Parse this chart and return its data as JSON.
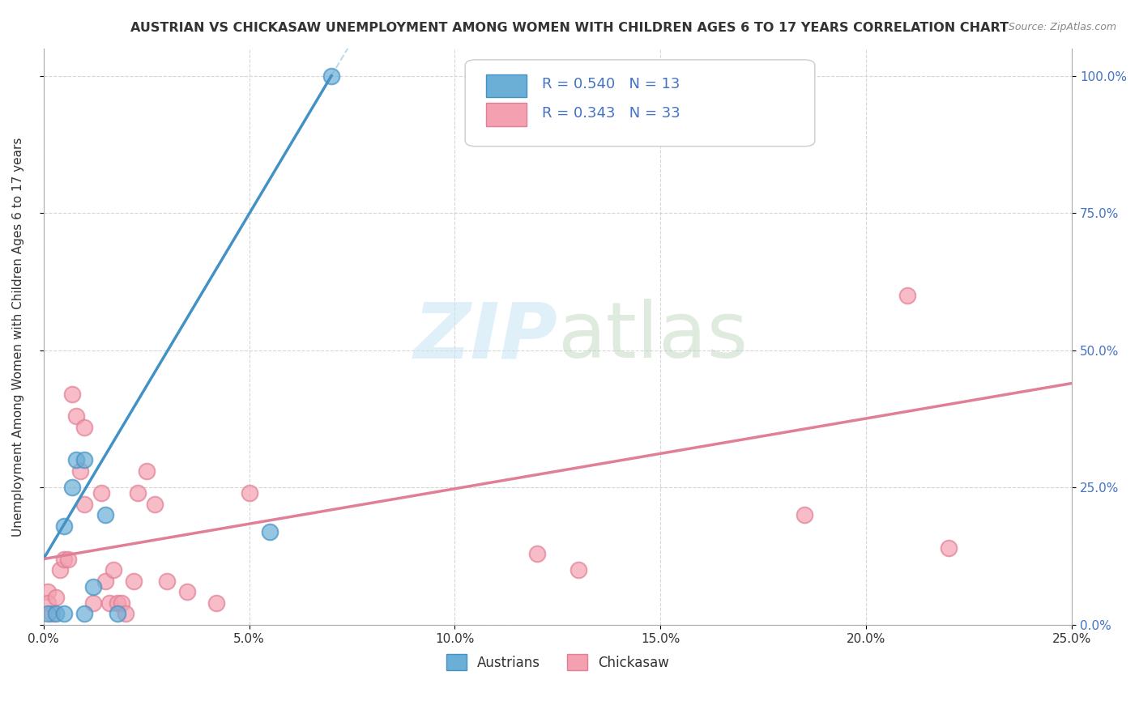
{
  "title": "AUSTRIAN VS CHICKASAW UNEMPLOYMENT AMONG WOMEN WITH CHILDREN AGES 6 TO 17 YEARS CORRELATION CHART",
  "source": "Source: ZipAtlas.com",
  "ylabel_label": "Unemployment Among Women with Children Ages 6 to 17 years",
  "legend_label1": "Austrians",
  "legend_label2": "Chickasaw",
  "r1": 0.54,
  "n1": 13,
  "r2": 0.343,
  "n2": 33,
  "color_blue": "#6baed6",
  "color_pink": "#f4a0b0",
  "color_blue_dark": "#4292c6",
  "color_pink_dark": "#e07f95",
  "austrian_x": [
    0.001,
    0.003,
    0.005,
    0.005,
    0.007,
    0.008,
    0.01,
    0.01,
    0.012,
    0.015,
    0.018,
    0.055,
    0.07
  ],
  "austrian_y": [
    0.02,
    0.02,
    0.02,
    0.18,
    0.25,
    0.3,
    0.3,
    0.02,
    0.07,
    0.2,
    0.02,
    0.17,
    1.0
  ],
  "chickasaw_x": [
    0.001,
    0.001,
    0.002,
    0.003,
    0.004,
    0.005,
    0.006,
    0.007,
    0.008,
    0.009,
    0.01,
    0.01,
    0.012,
    0.014,
    0.015,
    0.016,
    0.017,
    0.018,
    0.019,
    0.02,
    0.022,
    0.023,
    0.025,
    0.027,
    0.03,
    0.035,
    0.042,
    0.05,
    0.12,
    0.13,
    0.185,
    0.21,
    0.22
  ],
  "chickasaw_y": [
    0.06,
    0.04,
    0.02,
    0.05,
    0.1,
    0.12,
    0.12,
    0.42,
    0.38,
    0.28,
    0.22,
    0.36,
    0.04,
    0.24,
    0.08,
    0.04,
    0.1,
    0.04,
    0.04,
    0.02,
    0.08,
    0.24,
    0.28,
    0.22,
    0.08,
    0.06,
    0.04,
    0.24,
    0.13,
    0.1,
    0.2,
    0.6,
    0.14
  ],
  "xmin": 0.0,
  "xmax": 0.25,
  "ymin": 0.0,
  "ymax": 1.05,
  "austrian_slope": 12.57,
  "austrian_intercept": 0.12,
  "chickasaw_slope": 1.28,
  "chickasaw_intercept": 0.12
}
